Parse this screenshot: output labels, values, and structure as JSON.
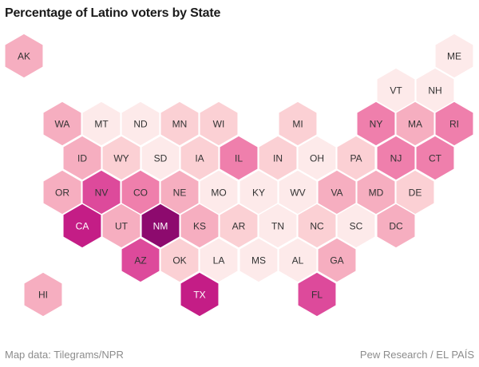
{
  "chart_data": {
    "type": "hex-tile-map",
    "title": "Percentage of Latino voters by State",
    "states": [
      {
        "abbr": "AK",
        "level": 2
      },
      {
        "abbr": "ME",
        "level": 0
      },
      {
        "abbr": "VT",
        "level": 0
      },
      {
        "abbr": "NH",
        "level": 0
      },
      {
        "abbr": "WA",
        "level": 2
      },
      {
        "abbr": "MT",
        "level": 0
      },
      {
        "abbr": "ND",
        "level": 0
      },
      {
        "abbr": "MN",
        "level": 1
      },
      {
        "abbr": "WI",
        "level": 1
      },
      {
        "abbr": "MI",
        "level": 1
      },
      {
        "abbr": "NY",
        "level": 3
      },
      {
        "abbr": "MA",
        "level": 2
      },
      {
        "abbr": "RI",
        "level": 3
      },
      {
        "abbr": "ID",
        "level": 2
      },
      {
        "abbr": "WY",
        "level": 1
      },
      {
        "abbr": "SD",
        "level": 0
      },
      {
        "abbr": "IA",
        "level": 1
      },
      {
        "abbr": "IL",
        "level": 3
      },
      {
        "abbr": "IN",
        "level": 1
      },
      {
        "abbr": "OH",
        "level": 0
      },
      {
        "abbr": "PA",
        "level": 1
      },
      {
        "abbr": "NJ",
        "level": 3
      },
      {
        "abbr": "CT",
        "level": 3
      },
      {
        "abbr": "OR",
        "level": 2
      },
      {
        "abbr": "NV",
        "level": 4
      },
      {
        "abbr": "CO",
        "level": 3
      },
      {
        "abbr": "NE",
        "level": 2
      },
      {
        "abbr": "MO",
        "level": 0
      },
      {
        "abbr": "KY",
        "level": 0
      },
      {
        "abbr": "WV",
        "level": 0
      },
      {
        "abbr": "VA",
        "level": 2
      },
      {
        "abbr": "MD",
        "level": 2
      },
      {
        "abbr": "DE",
        "level": 1
      },
      {
        "abbr": "CA",
        "level": 5
      },
      {
        "abbr": "UT",
        "level": 2
      },
      {
        "abbr": "NM",
        "level": 6
      },
      {
        "abbr": "KS",
        "level": 2
      },
      {
        "abbr": "AR",
        "level": 1
      },
      {
        "abbr": "TN",
        "level": 0
      },
      {
        "abbr": "NC",
        "level": 1
      },
      {
        "abbr": "SC",
        "level": 0
      },
      {
        "abbr": "DC",
        "level": 2
      },
      {
        "abbr": "AZ",
        "level": 4
      },
      {
        "abbr": "OK",
        "level": 1
      },
      {
        "abbr": "LA",
        "level": 0
      },
      {
        "abbr": "MS",
        "level": 0
      },
      {
        "abbr": "AL",
        "level": 0
      },
      {
        "abbr": "GA",
        "level": 2
      },
      {
        "abbr": "HI",
        "level": 2
      },
      {
        "abbr": "TX",
        "level": 5
      },
      {
        "abbr": "FL",
        "level": 4
      }
    ],
    "color_scale": [
      "#fdeaea",
      "#fbd0d4",
      "#f6aec0",
      "#ef7fac",
      "#dd4a9b",
      "#c41d86",
      "#8d0a6e"
    ]
  },
  "footer": {
    "left": "Map data: Tilegrams/NPR",
    "right": "Pew Research / EL PAÍS"
  }
}
